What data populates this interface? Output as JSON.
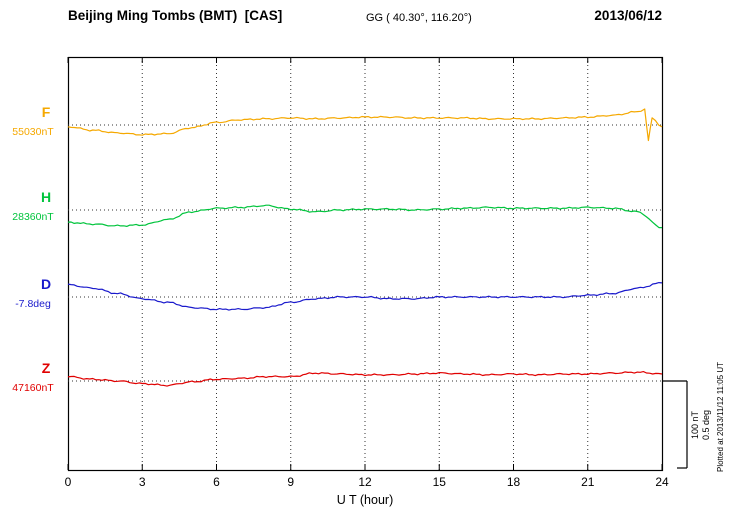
{
  "header": {
    "title": "Beijing Ming Tombs (BMT)  [CAS]",
    "coords": "GG ( 40.30°, 116.20°)",
    "date": "2013/06/12"
  },
  "axis": {
    "x_ticks": [
      "0",
      "3",
      "6",
      "9",
      "12",
      "15",
      "18",
      "21",
      "24"
    ],
    "x_label": "U T (hour)"
  },
  "scale_bar": {
    "line1": "100 nT",
    "line2": "0.5 deg"
  },
  "plotted_at": "Plotted at 2013/11/12 11:05 UT",
  "chart_data": {
    "type": "line",
    "title": "Beijing Ming Tombs (BMT) magnetogram 2013/06/12",
    "xlabel": "U T (hour)",
    "x_range": [
      0,
      24
    ],
    "grid": "dotted vertical every 3 hours, dotted horizontal baseline per component",
    "legend_position": "left of each trace",
    "scale": {
      "nT_per_div": 100,
      "deg_per_div": 0.5
    },
    "series": [
      {
        "name": "F",
        "value_label": "55030nT",
        "baseline": 55030,
        "unit": "nT",
        "color": "#f5a800",
        "x": [
          0,
          1,
          2,
          3,
          4,
          5,
          6,
          7,
          8,
          9,
          10,
          11,
          12,
          13,
          14,
          15,
          16,
          17,
          18,
          19,
          20,
          21,
          22,
          23,
          23.3,
          23.45,
          23.6,
          24
        ],
        "values": [
          55028,
          55024,
          55021,
          55019,
          55020,
          55027,
          55033,
          55036,
          55037,
          55038,
          55037,
          55038,
          55039,
          55039,
          55038,
          55038,
          55038,
          55037,
          55037,
          55037,
          55038,
          55039,
          55041,
          55045,
          55048,
          55012,
          55038,
          55028
        ]
      },
      {
        "name": "H",
        "value_label": "28360nT",
        "baseline": 28360,
        "unit": "nT",
        "color": "#00c43c",
        "x": [
          0,
          1,
          2,
          3,
          4,
          5,
          6,
          7,
          8,
          9,
          10,
          11,
          12,
          13,
          14,
          15,
          16,
          17,
          18,
          19,
          20,
          21,
          22,
          23,
          24
        ],
        "values": [
          28346,
          28344,
          28342,
          28343,
          28349,
          28358,
          28362,
          28363,
          28365,
          28361,
          28358,
          28360,
          28361,
          28361,
          28360,
          28361,
          28362,
          28363,
          28362,
          28362,
          28362,
          28363,
          28362,
          28358,
          28340
        ]
      },
      {
        "name": "D",
        "value_label": "-7.8deg",
        "baseline": -7.8,
        "unit": "deg",
        "color": "#1a1acc",
        "x": [
          0,
          1,
          2,
          3,
          4,
          5,
          6,
          7,
          8,
          9,
          10,
          11,
          12,
          13,
          14,
          15,
          16,
          17,
          18,
          19,
          20,
          21,
          22,
          23,
          24
        ],
        "values": [
          -7.73,
          -7.75,
          -7.78,
          -7.81,
          -7.83,
          -7.86,
          -7.87,
          -7.87,
          -7.86,
          -7.83,
          -7.81,
          -7.8,
          -7.8,
          -7.81,
          -7.81,
          -7.8,
          -7.8,
          -7.8,
          -7.8,
          -7.8,
          -7.8,
          -7.79,
          -7.78,
          -7.75,
          -7.72
        ]
      },
      {
        "name": "Z",
        "value_label": "47160nT",
        "baseline": 47160,
        "unit": "nT",
        "color": "#e00000",
        "x": [
          0,
          1,
          2,
          3,
          4,
          5,
          6,
          7,
          8,
          9,
          10,
          11,
          12,
          13,
          14,
          15,
          16,
          17,
          18,
          19,
          20,
          21,
          22,
          23,
          24
        ],
        "values": [
          47165,
          47162,
          47160,
          47157,
          47155,
          47159,
          47162,
          47163,
          47165,
          47165,
          47169,
          47168,
          47167,
          47167,
          47168,
          47169,
          47168,
          47167,
          47168,
          47167,
          47168,
          47168,
          47169,
          47170,
          47168
        ]
      }
    ]
  }
}
